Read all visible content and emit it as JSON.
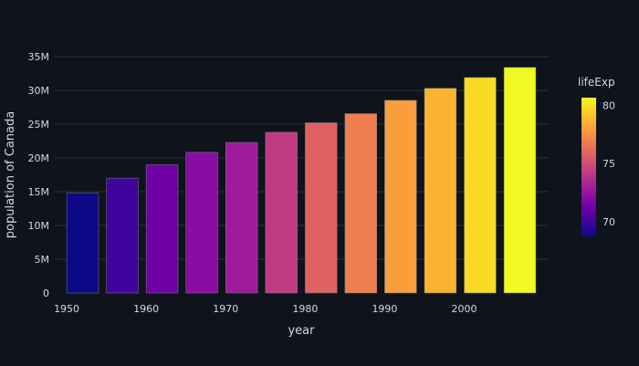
{
  "chart_data": {
    "type": "bar",
    "title": "",
    "xlabel": "year",
    "ylabel": "population of Canada",
    "x": [
      1952,
      1957,
      1962,
      1967,
      1972,
      1977,
      1982,
      1987,
      1992,
      1997,
      2002,
      2007
    ],
    "values": [
      14785584,
      17010154,
      18985849,
      20819767,
      22284500,
      23796400,
      25201900,
      26549700,
      28523502,
      30305843,
      31902268,
      33390141
    ],
    "color_values": [
      68.75,
      69.96,
      71.3,
      72.13,
      72.88,
      74.21,
      75.76,
      76.86,
      77.95,
      78.61,
      79.77,
      80.653
    ],
    "xlim": [
      1948.5,
      2010.5
    ],
    "ylim": [
      0,
      35000000
    ],
    "x_ticks": [
      1950,
      1960,
      1970,
      1980,
      1990,
      2000
    ],
    "x_tick_labels": [
      "1950",
      "1960",
      "1970",
      "1980",
      "1990",
      "2000"
    ],
    "y_ticks": [
      0,
      5000000,
      10000000,
      15000000,
      20000000,
      25000000,
      30000000,
      35000000
    ],
    "y_tick_labels": [
      "0",
      "5M",
      "10M",
      "15M",
      "20M",
      "25M",
      "30M",
      "35M"
    ],
    "grid": true,
    "colorbar": {
      "title": "lifeExp",
      "range": [
        68.75,
        80.653
      ],
      "ticks": [
        70,
        75,
        80
      ],
      "tick_labels": [
        "70",
        "75",
        "80"
      ],
      "colors": [
        "#0d0887",
        "#46039f",
        "#7201a8",
        "#9c179e",
        "#bd3786",
        "#d8576b",
        "#ed7953",
        "#fb9f3a",
        "#fdca26",
        "#f0f921"
      ]
    }
  }
}
